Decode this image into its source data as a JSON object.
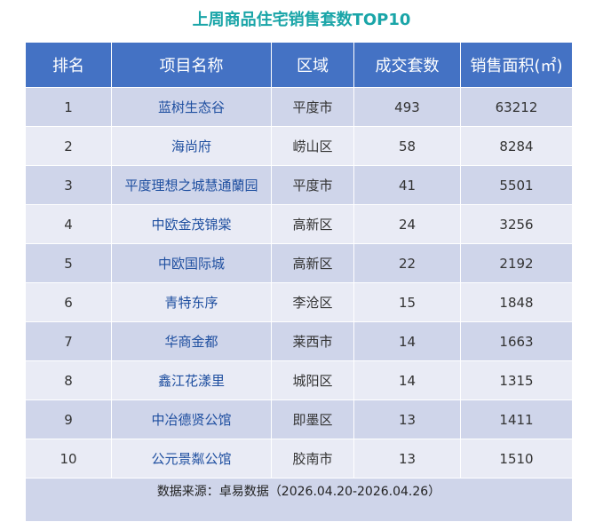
{
  "header": {
    "title": "上周商品住宅销售套数TOP10"
  },
  "table": {
    "columns": [
      "排名",
      "项目名称",
      "区域",
      "成交套数",
      "销售面积(㎡)"
    ],
    "rows": [
      [
        1,
        "蓝树生态谷",
        "平度市",
        493,
        63212
      ],
      [
        2,
        "海尚府",
        "崂山区",
        58,
        8284
      ],
      [
        3,
        "平度理想之城慧通蘭园",
        "平度市",
        41,
        5501
      ],
      [
        4,
        "中欧金茂锦棠",
        "高新区",
        24,
        3256
      ],
      [
        5,
        "中欧国际城",
        "高新区",
        22,
        2192
      ],
      [
        6,
        "青特东序",
        "李沧区",
        15,
        1848
      ],
      [
        7,
        "华商金都",
        "莱西市",
        14,
        1663
      ],
      [
        8,
        "鑫江花漾里",
        "城阳区",
        14,
        1315
      ],
      [
        9,
        "中冶德贤公馆",
        "即墨区",
        13,
        1411
      ],
      [
        10,
        "公元景粼公馆",
        "胶南市",
        13,
        1510
      ]
    ],
    "footer": "数据来源：卓易数据（2026.04.20-2026.04.26）"
  }
}
